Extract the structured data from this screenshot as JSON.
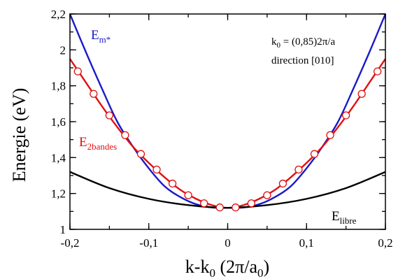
{
  "chart_data": {
    "type": "line",
    "xlabel_main": "k-k",
    "xlabel_sub": "0",
    "xlabel_unit_pre": " (2π/a",
    "xlabel_unit_sub": "0",
    "xlabel_unit_post": ")",
    "ylabel": "Energie (eV)",
    "xlim": [
      -0.2,
      0.2
    ],
    "ylim": [
      1.0,
      2.2
    ],
    "x_ticks": [
      -0.2,
      -0.1,
      0,
      0.1,
      0.2
    ],
    "x_tick_labels": [
      "-0,2",
      "-0,1",
      "0",
      "0,1",
      "0,2"
    ],
    "y_ticks": [
      1.0,
      1.2,
      1.4,
      1.6,
      1.8,
      2.0,
      2.2
    ],
    "y_tick_labels": [
      "1",
      "1,2",
      "1,4",
      "1,6",
      "1,8",
      "2",
      "2,2"
    ],
    "annotation_line1_pre": "k",
    "annotation_line1_sub": "0",
    "annotation_line1_post": " = (0,85)2π/a",
    "annotation_line2": "direction [010]",
    "curve_labels": {
      "effective_mass": {
        "main": "E",
        "sub": "m*",
        "color": "#1a1ac8"
      },
      "two_band": {
        "main": "E",
        "sub": "2bandes",
        "color": "#e01010"
      },
      "free": {
        "main": "E",
        "sub": "libre",
        "color": "#000000"
      }
    },
    "series": [
      {
        "key": "effective_mass",
        "color": "#1a1ac8",
        "x": [
          -0.2,
          -0.18,
          -0.16,
          -0.14,
          -0.12,
          -0.1,
          -0.08,
          -0.06,
          -0.04,
          -0.02,
          0,
          0.02,
          0.04,
          0.06,
          0.08,
          0.1,
          0.12,
          0.14,
          0.16,
          0.18,
          0.2
        ],
        "values": [
          2.2,
          1.99,
          1.79,
          1.6,
          1.46,
          1.34,
          1.24,
          1.18,
          1.14,
          1.122,
          1.12,
          1.122,
          1.14,
          1.18,
          1.24,
          1.34,
          1.46,
          1.6,
          1.79,
          1.99,
          2.2
        ]
      },
      {
        "key": "two_band",
        "color": "#e01010",
        "x": [
          -0.2,
          -0.18,
          -0.16,
          -0.14,
          -0.12,
          -0.1,
          -0.08,
          -0.06,
          -0.04,
          -0.02,
          0,
          0.02,
          0.04,
          0.06,
          0.08,
          0.1,
          0.12,
          0.14,
          0.16,
          0.18,
          0.2
        ],
        "values": [
          1.95,
          1.82,
          1.69,
          1.57,
          1.46,
          1.37,
          1.29,
          1.22,
          1.17,
          1.135,
          1.12,
          1.135,
          1.17,
          1.22,
          1.29,
          1.37,
          1.46,
          1.57,
          1.69,
          1.82,
          1.95
        ]
      },
      {
        "key": "free",
        "color": "#000000",
        "x": [
          -0.2,
          -0.15,
          -0.1,
          -0.05,
          0,
          0.05,
          0.1,
          0.15,
          0.2
        ],
        "values": [
          1.32,
          1.23,
          1.17,
          1.135,
          1.12,
          1.135,
          1.17,
          1.23,
          1.32
        ]
      }
    ],
    "markers": {
      "color": "#e01010",
      "shape": "open-circle",
      "x": [
        -0.19,
        -0.17,
        -0.15,
        -0.13,
        -0.11,
        -0.09,
        -0.07,
        -0.05,
        -0.03,
        -0.01,
        0.01,
        0.03,
        0.05,
        0.07,
        0.09,
        0.11,
        0.13,
        0.15,
        0.17,
        0.19
      ],
      "values": [
        1.88,
        1.755,
        1.635,
        1.525,
        1.42,
        1.333,
        1.255,
        1.19,
        1.145,
        1.122,
        1.122,
        1.145,
        1.19,
        1.255,
        1.333,
        1.42,
        1.525,
        1.635,
        1.755,
        1.88
      ]
    },
    "grid": false
  }
}
